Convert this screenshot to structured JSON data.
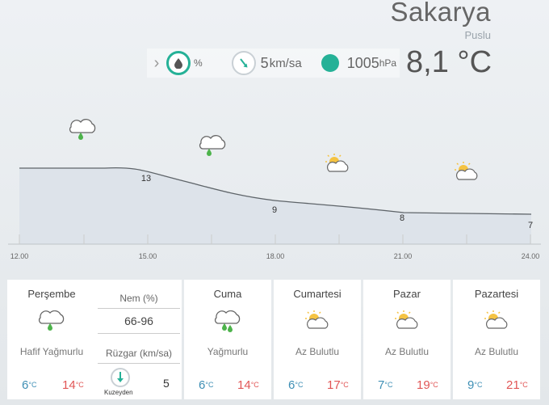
{
  "location": {
    "city": "Sakarya",
    "condition": "Puslu"
  },
  "current": {
    "humidity_unit": "%",
    "wind_value": "5",
    "wind_unit": "km/sa",
    "pressure_value": "1005",
    "pressure_unit": "hPa",
    "temperature": "8,1 °C"
  },
  "chart_data": {
    "type": "area",
    "x": [
      "12.00",
      "15.00",
      "18.00",
      "21.00",
      "24.00"
    ],
    "points": [
      {
        "time": "12.00",
        "value": null,
        "icon": "cloud-rain-icon"
      },
      {
        "time": "15.00",
        "value": 13,
        "icon": "cloud-rain-icon"
      },
      {
        "time": "18.00",
        "value": 9,
        "icon": "sun-cloud-icon"
      },
      {
        "time": "21.00",
        "value": 8,
        "icon": "sun-cloud-icon"
      },
      {
        "time": "24.00",
        "value": 7,
        "icon": ""
      }
    ],
    "labels": [
      "13",
      "9",
      "8",
      "7"
    ]
  },
  "forecast": {
    "today": {
      "day": "Perşembe",
      "icon": "cloud-rain-icon",
      "desc": "Hafif Yağmurlu",
      "min": "6",
      "max": "14",
      "humidity_label": "Nem (%)",
      "humidity_value": "66-96",
      "wind_label": "Rüzgar (km/sa)",
      "wind_value": "5",
      "wind_dir": "Kuzeyden"
    },
    "days": [
      {
        "day": "Cuma",
        "icon": "cloud-rain-icon",
        "desc": "Yağmurlu",
        "min": "6",
        "max": "14"
      },
      {
        "day": "Cumartesi",
        "icon": "sun-cloud-icon",
        "desc": "Az Bulutlu",
        "min": "6",
        "max": "17"
      },
      {
        "day": "Pazar",
        "icon": "sun-cloud-icon",
        "desc": "Az Bulutlu",
        "min": "7",
        "max": "19"
      },
      {
        "day": "Pazartesi",
        "icon": "sun-cloud-icon",
        "desc": "Az Bulutlu",
        "min": "9",
        "max": "21"
      }
    ],
    "deg_unit": "°C"
  },
  "colors": {
    "accent": "#25b197",
    "min_temp": "#3e8fb5",
    "max_temp": "#e15656"
  }
}
